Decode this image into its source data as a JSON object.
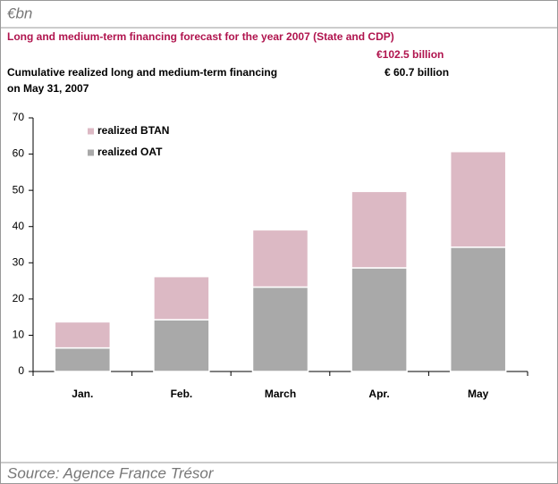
{
  "chart_data": {
    "type": "stacked_bar",
    "unit_label": "€bn",
    "title": "Long and medium-term financing forecast for the  year 2007 (State and CDP)",
    "forecast_label": "€102.5 billion",
    "subtitle_line1": "Cumulative realized long and medium-term financing",
    "subtitle_line2": "on May 31, 2007",
    "realized_label": "€ 60.7 billion",
    "source": "Source: Agence France Trésor",
    "categories": [
      "Jan.",
      "Feb.",
      "March",
      "Apr.",
      "May"
    ],
    "series": [
      {
        "name": "realized OAT",
        "color": "#a9a9a9",
        "values": [
          6.5,
          14.3,
          23.3,
          28.6,
          34.3
        ]
      },
      {
        "name": "realized BTAN",
        "color": "#dcb9c4",
        "values": [
          7.2,
          11.9,
          15.8,
          21.1,
          26.4
        ]
      }
    ],
    "ylim": [
      0,
      70
    ],
    "yticks": [
      0,
      10,
      20,
      30,
      40,
      50,
      60,
      70
    ],
    "legend": "upper left"
  }
}
